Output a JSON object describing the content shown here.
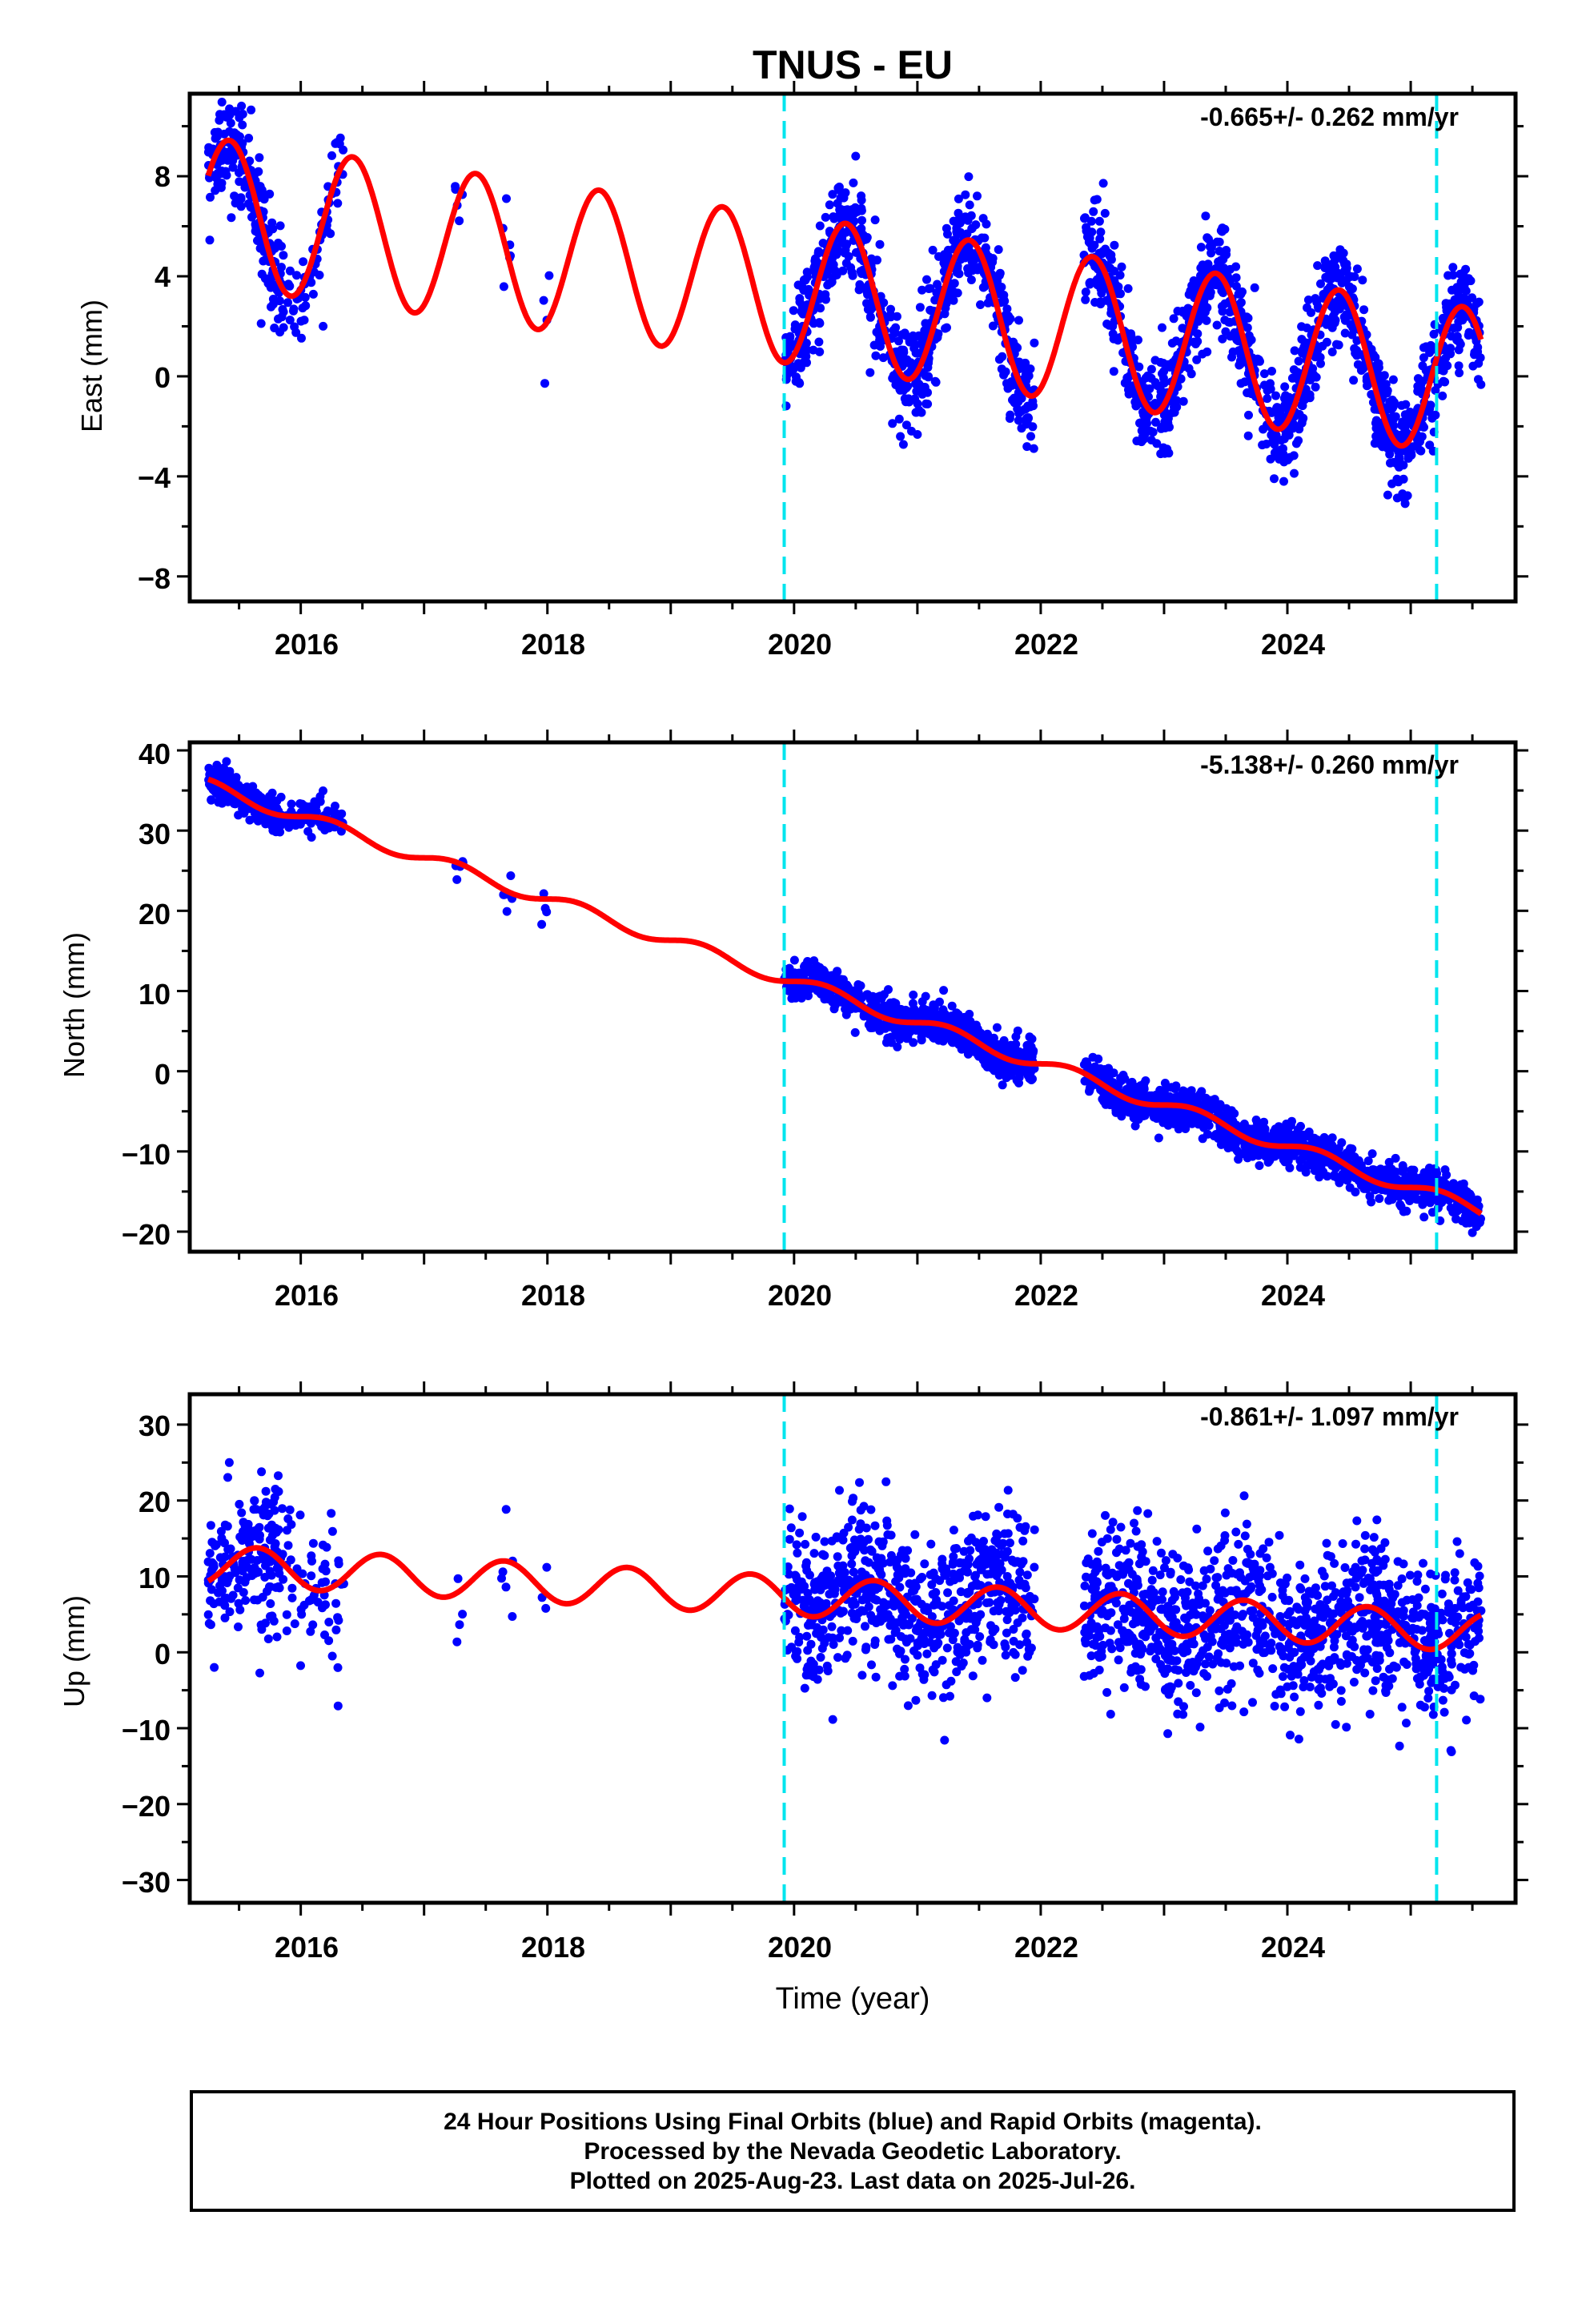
{
  "colors": {
    "final_orbits": "#0000ff",
    "model": "#ff0000",
    "offset": "#00e5ee",
    "frame": "#000000"
  },
  "chart_data": [
    {
      "type": "scatter",
      "title": "TNUS - EU",
      "xlabel": "",
      "ylabel": "East (mm)",
      "xlim": [
        2015.1,
        2025.85
      ],
      "ylim": [
        -9,
        11.3
      ],
      "xticks": [
        "2016",
        "2018",
        "2020",
        "2022",
        "2024"
      ],
      "yticks": [
        "8",
        "4",
        "0",
        "−4",
        "−8"
      ],
      "rate_label": "-0.665+/- 0.262 mm/yr",
      "offsets": [
        2019.92,
        2025.21
      ],
      "model": {
        "rate": -0.665,
        "intercept": 6.6,
        "seasonal_amplitude": 2.95,
        "peak_phase": 0.42
      },
      "observations": {
        "noise_sd": 1.0,
        "outlier_range": [
          -8.5,
          10.8
        ]
      }
    },
    {
      "type": "scatter",
      "title": "",
      "xlabel": "",
      "ylabel": "North (mm)",
      "xlim": [
        2015.1,
        2025.85
      ],
      "ylim": [
        -22.5,
        41
      ],
      "xticks": [
        "2016",
        "2018",
        "2020",
        "2022",
        "2024"
      ],
      "yticks": [
        "40",
        "30",
        "20",
        "10",
        "0",
        "−10",
        "−20"
      ],
      "rate_label": "-5.138+/- 0.260 mm/yr",
      "offsets": [
        2019.92,
        2025.21
      ],
      "model": {
        "rate": -5.138,
        "intercept": 35.6,
        "seasonal_amplitude": 0.8,
        "peak_phase": 0.25
      },
      "observations": {
        "noise_sd": 1.2,
        "outlier_range": [
          -21,
          40
        ]
      }
    },
    {
      "type": "scatter",
      "title": "",
      "xlabel": "Time (year)",
      "ylabel": "Up (mm)",
      "xlim": [
        2015.1,
        2025.85
      ],
      "ylim": [
        -33,
        34
      ],
      "xticks": [
        "2016",
        "2018",
        "2020",
        "2022",
        "2024"
      ],
      "yticks": [
        "30",
        "20",
        "10",
        "0",
        "−10",
        "−20",
        "−30"
      ],
      "rate_label": "-0.861+/- 1.097 mm/yr",
      "offsets": [
        2019.92,
        2025.21
      ],
      "model": {
        "rate": -0.861,
        "intercept": 11.5,
        "seasonal_amplitude": 2.6,
        "peak_phase": 0.65,
        "offset_steps": [
          -8,
          -1.5
        ]
      },
      "observations": {
        "noise_sd": 5.0,
        "outlier_range": [
          -31,
          33
        ]
      }
    }
  ],
  "footer": {
    "line1": "24 Hour Positions Using Final Orbits (blue) and Rapid Orbits (magenta).",
    "line2": "Processed by the Nevada Geodetic Laboratory.",
    "line3": "Plotted on 2025-Aug-23. Last data on 2025-Jul-26."
  }
}
